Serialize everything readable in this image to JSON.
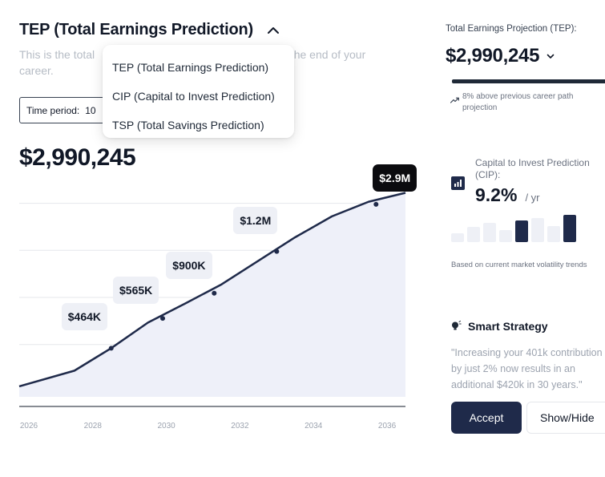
{
  "main": {
    "title": "TEP (Total Earnings Prediction)",
    "subtitle_start": "This is the total",
    "subtitle_end": "n the end of your",
    "subtitle_line2": "career.",
    "time_period_label": "Time period:",
    "time_period_value": "10",
    "big_value": "$2,990,245"
  },
  "dropdown": {
    "items": [
      "TEP (Total Earnings Prediction)",
      "CIP (Capital to Invest Prediction)",
      "TSP (Total Savings Prediction)"
    ]
  },
  "chart_data": {
    "type": "area",
    "x": [
      2025.5,
      2027,
      2028,
      2029,
      2030,
      2031,
      2032,
      2033,
      2034,
      2035,
      2036
    ],
    "values": [
      0.2,
      0.5,
      0.93,
      1.42,
      1.78,
      2.15,
      2.6,
      3.05,
      3.45,
      3.73,
      3.9
    ],
    "ylim": [
      0,
      4.0
    ],
    "xlim": [
      2025.5,
      2036
    ],
    "xticks": [
      "2026",
      "2028",
      "2030",
      "2032",
      "2034",
      "2036"
    ],
    "xtick_values": [
      2025.5,
      2027.5,
      2029.5,
      2031.5,
      2033.5,
      2035.5
    ],
    "markers": [
      {
        "x": 2028,
        "value": 0.93,
        "label": "$464K"
      },
      {
        "x": 2029.4,
        "value": 1.5,
        "label": "$565K"
      },
      {
        "x": 2030.8,
        "value": 1.98,
        "label": "$900K"
      },
      {
        "x": 2032.5,
        "value": 2.78,
        "label": "$1.2M"
      },
      {
        "x": 2035.2,
        "value": 3.68,
        "label": "$2.9M"
      }
    ],
    "grid": true
  },
  "projection": {
    "label": "Total Earnings Projection (TEP):",
    "value": "$2,990,245",
    "note": "8% above previous career path projection"
  },
  "cip": {
    "label": "Capital to Invest Prediction (CIP):",
    "value": "9.2%",
    "unit": "/ yr",
    "bars": [
      0.28,
      0.5,
      0.62,
      0.4,
      0.7,
      0.8,
      0.52,
      0.9
    ],
    "highlighted": [
      4,
      7
    ],
    "footnote": "Based on current market volatility trends"
  },
  "strategy": {
    "title": "Smart Strategy",
    "quote_line1": "\"Increasing your 401k contribution",
    "quote_line2": "by just 2% now results in an",
    "quote_line3": "additional $420k in 30 years.\""
  },
  "actions": {
    "accept_label": "Accept",
    "show_hide_label": "Show/Hide"
  },
  "colors": {
    "accent": "#1f2a4a",
    "area_fill": "#eef0f9",
    "line": "#1f2a4a"
  }
}
